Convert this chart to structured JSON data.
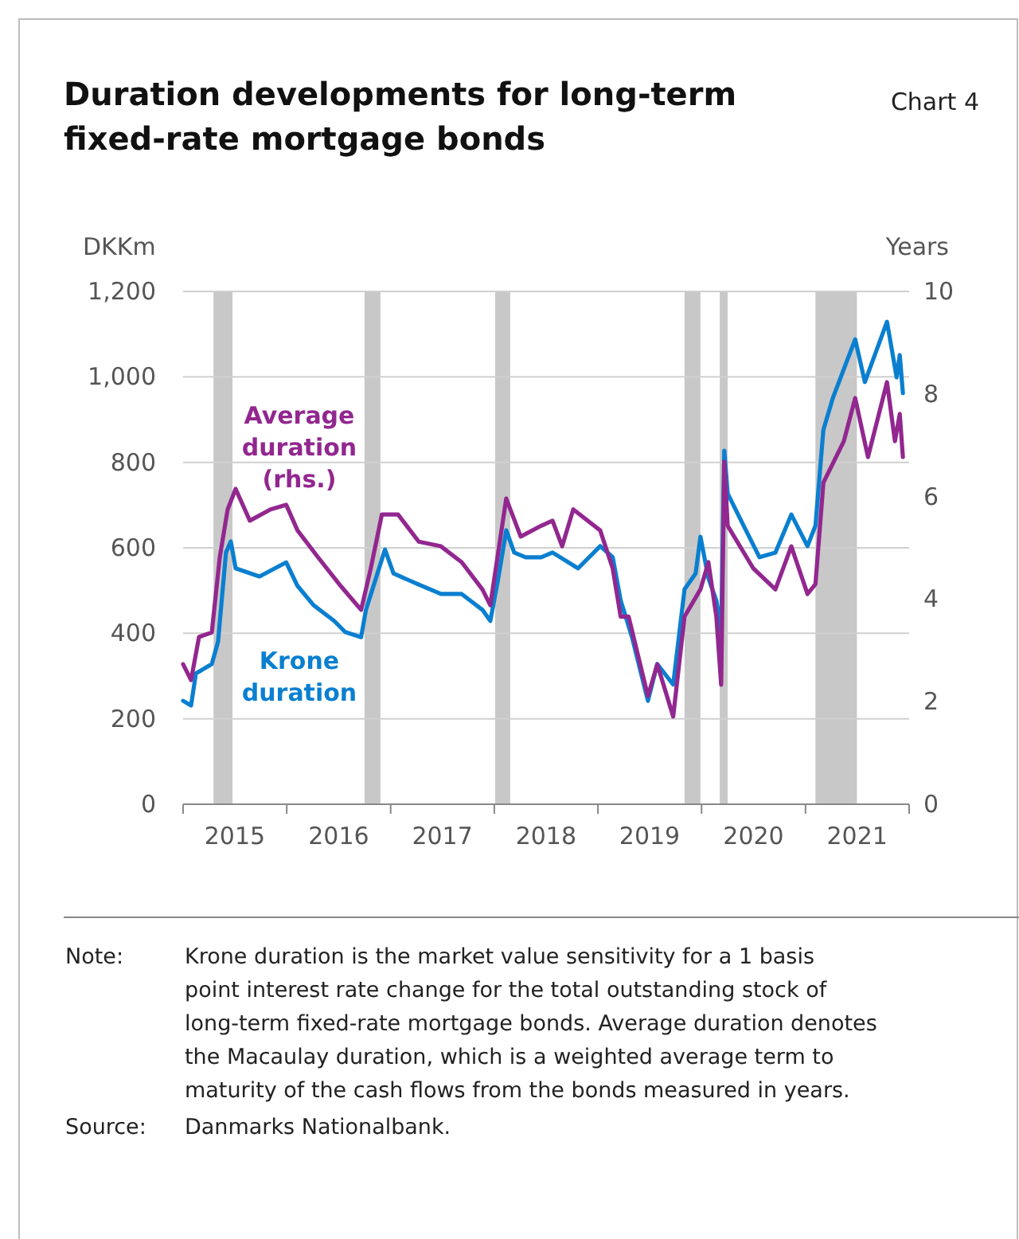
{
  "chart_data": {
    "type": "line",
    "title": "Duration developments for long-term fixed-rate mortgage bonds",
    "subtitle": "Chart 4",
    "ylabel": "DKKm",
    "y2label": "Years",
    "xlim": [
      "2015-01-01",
      "2022-01-01"
    ],
    "xticks": [
      {
        "value": "2015-01-01",
        "label": null
      },
      {
        "value": "2015-07-02",
        "label": "2015"
      },
      {
        "value": "2016-01-01",
        "label": null
      },
      {
        "value": "2016-07-02",
        "label": "2016"
      },
      {
        "value": "2017-01-01",
        "label": null
      },
      {
        "value": "2017-07-02",
        "label": "2017"
      },
      {
        "value": "2018-01-01",
        "label": null
      },
      {
        "value": "2018-07-02",
        "label": "2018"
      },
      {
        "value": "2019-01-01",
        "label": null
      },
      {
        "value": "2019-07-02",
        "label": "2019"
      },
      {
        "value": "2020-01-01",
        "label": null
      },
      {
        "value": "2020-07-02",
        "label": "2020"
      },
      {
        "value": "2021-01-01",
        "label": null
      },
      {
        "value": "2021-07-02",
        "label": "2021"
      },
      {
        "value": "2022-01-01",
        "label": null
      }
    ],
    "ylim": [
      0,
      1200
    ],
    "yticks": [
      0,
      200,
      400,
      600,
      800,
      {
        "value": 1000,
        "label": "1,000"
      },
      {
        "value": 1200,
        "label": "1,200"
      }
    ],
    "y2lim": [
      0,
      10
    ],
    "y2ticks": [
      0,
      2,
      4,
      6,
      8,
      10
    ],
    "grid": "y",
    "bands": [
      {
        "axis": "x",
        "from": "2015-04-18",
        "to": "2015-06-24",
        "color": "#c8c8c8"
      },
      {
        "axis": "x",
        "from": "2016-10-01",
        "to": "2016-11-26",
        "color": "#c8c8c8"
      },
      {
        "axis": "x",
        "from": "2018-01-04",
        "to": "2018-02-26",
        "color": "#c8c8c8"
      },
      {
        "axis": "x",
        "from": "2019-11-02",
        "to": "2019-12-28",
        "color": "#c8c8c8"
      },
      {
        "axis": "x",
        "from": "2020-03-05",
        "to": "2020-04-02",
        "color": "#c8c8c8"
      },
      {
        "axis": "x",
        "from": "2021-02-05",
        "to": "2021-07-01",
        "color": "#c8c8c8"
      }
    ],
    "series": [
      {
        "name": "Krone duration",
        "color": "#0a7fd0",
        "x": [
          "2015-01-01",
          "2015-01-29",
          "2015-02-15",
          "2015-04-12",
          "2015-05-04",
          "2015-06-01",
          "2015-06-18",
          "2015-07-05",
          "2015-09-27",
          "2015-12-30",
          "2016-02-08",
          "2016-04-04",
          "2016-06-16",
          "2016-07-25",
          "2016-09-19",
          "2016-10-06",
          "2016-12-12",
          "2017-01-11",
          "2017-04-10",
          "2017-06-27",
          "2017-09-08",
          "2017-11-20",
          "2017-12-18",
          "2018-01-15",
          "2018-02-12",
          "2018-03-12",
          "2018-04-21",
          "2018-06-15",
          "2018-07-25",
          "2018-10-23",
          "2019-01-09",
          "2019-02-22",
          "2019-03-22",
          "2019-05-01",
          "2019-06-26",
          "2019-07-29",
          "2019-09-23",
          "2019-11-02",
          "2019-12-11",
          "2019-12-28",
          "2020-01-25",
          "2020-02-22",
          "2020-03-10",
          "2020-03-21",
          "2020-04-02",
          "2020-05-28",
          "2020-07-23",
          "2020-09-17",
          "2020-11-12",
          "2021-01-08",
          "2021-02-05",
          "2021-03-05",
          "2021-04-07",
          "2021-06-25",
          "2021-07-29",
          "2021-10-15",
          "2021-11-18",
          "2021-11-29",
          "2021-12-10"
        ],
        "values": [
          242,
          231,
          306,
          328,
          380,
          589,
          615,
          552,
          533,
          566,
          511,
          466,
          429,
          403,
          391,
          455,
          596,
          540,
          514,
          492,
          492,
          455,
          429,
          529,
          641,
          589,
          578,
          578,
          589,
          552,
          604,
          578,
          477,
          391,
          242,
          328,
          280,
          503,
          540,
          626,
          529,
          477,
          403,
          827,
          727,
          652,
          578,
          589,
          678,
          604,
          652,
          876,
          950,
          1088,
          988,
          1129,
          999,
          1051,
          962
        ]
      },
      {
        "name": "Average duration (rhs.)",
        "color": "#92278f",
        "axis": "y2",
        "x": [
          "2015-01-01",
          "2015-01-29",
          "2015-02-26",
          "2015-04-12",
          "2015-05-10",
          "2015-06-07",
          "2015-07-05",
          "2015-08-24",
          "2015-11-05",
          "2015-12-30",
          "2016-02-08",
          "2016-04-21",
          "2016-07-04",
          "2016-09-19",
          "2016-10-23",
          "2016-12-01",
          "2017-01-27",
          "2017-04-10",
          "2017-06-27",
          "2017-09-08",
          "2017-11-20",
          "2017-12-18",
          "2018-02-12",
          "2018-04-04",
          "2018-06-15",
          "2018-07-25",
          "2018-08-28",
          "2018-10-06",
          "2019-01-09",
          "2019-02-22",
          "2019-03-22",
          "2019-04-19",
          "2019-06-26",
          "2019-07-29",
          "2019-09-23",
          "2019-11-02",
          "2019-12-28",
          "2020-01-25",
          "2020-02-22",
          "2020-03-10",
          "2020-03-21",
          "2020-04-02",
          "2020-07-01",
          "2020-09-17",
          "2020-11-12",
          "2021-01-08",
          "2021-02-05",
          "2021-03-05",
          "2021-05-16",
          "2021-06-25",
          "2021-08-09",
          "2021-10-15",
          "2021-11-12",
          "2021-11-29",
          "2021-12-10"
        ],
        "values": [
          2.73,
          2.42,
          3.26,
          3.35,
          4.81,
          5.75,
          6.15,
          5.53,
          5.75,
          5.84,
          5.34,
          4.81,
          4.29,
          3.79,
          4.6,
          5.65,
          5.65,
          5.12,
          5.03,
          4.72,
          4.19,
          3.88,
          5.96,
          5.22,
          5.43,
          5.53,
          5.03,
          5.75,
          5.34,
          4.6,
          3.66,
          3.66,
          2.11,
          2.73,
          1.71,
          3.66,
          4.19,
          4.72,
          3.66,
          2.33,
          6.68,
          5.43,
          4.6,
          4.19,
          5.03,
          4.1,
          4.29,
          6.27,
          7.08,
          7.92,
          6.77,
          8.23,
          7.08,
          7.61,
          6.77
        ]
      }
    ],
    "annotations": [
      "Note: Krone duration is the market value sensitivity for a 1 basis point interest rate change for the total outstanding stock of long-term fixed-rate mortgage bonds. Average duration denotes the Macaulay duration, which is a weighted average term to maturity of the cash flows from the bonds measured in years.",
      "Source: Danmarks Nationalbank."
    ]
  }
}
